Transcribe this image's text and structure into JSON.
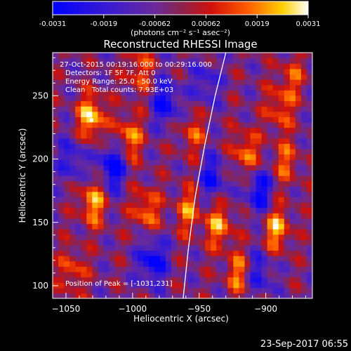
{
  "colorbar": {
    "ticks": [
      "-0.0031",
      "-0.0019",
      "-0.00062",
      "0.00062",
      "0.0019",
      "0.0031"
    ],
    "unit_label": "(photons cm⁻² s⁻¹ asec⁻²)"
  },
  "header": {
    "title": "Reconstructed RHESSI Image"
  },
  "annotations": {
    "line1": "27-Oct-2015 00:19:16.000 to 00:29:16.000",
    "line2": "Detectors: 1F 5F 7F, Att 0",
    "line3": "Energy Range: 25.0 - 50.0 keV",
    "line4": "Clean   Total counts: 7.93E+03",
    "peak": "Position of Peak = [-1031,231]"
  },
  "footer": {
    "timestamp": "23-Sep-2017 06:55"
  },
  "colors": {
    "background": "#000000",
    "text": "#ffffff",
    "limb_line": "#ffffff"
  },
  "chart_data": {
    "type": "heatmap",
    "title": "Reconstructed RHESSI Image",
    "xlabel": "Heliocentric X (arcsec)",
    "ylabel": "Heliocentric Y (arcsec)",
    "xlim": [
      -1060,
      -865
    ],
    "ylim": [
      90,
      284
    ],
    "xticks": [
      -1050,
      -1000,
      -950,
      -900
    ],
    "yticks": [
      100,
      150,
      200,
      250
    ],
    "colormap": "blue-purple-red-orange-yellow-white",
    "color_range": [
      -0.0031,
      0.0031
    ],
    "peak": [
      -1031,
      231
    ],
    "limb_curve": [
      [
        -962,
        90
      ],
      [
        -958,
        130
      ],
      [
        -953,
        170
      ],
      [
        -946,
        210
      ],
      [
        -938,
        250
      ],
      [
        -930,
        284
      ]
    ],
    "bright_sources": [
      {
        "x": -1031,
        "y": 233,
        "value": 0.0031
      },
      {
        "x": -1030,
        "y": 166,
        "value": 0.0026
      },
      {
        "x": -1003,
        "y": 217,
        "value": 0.0024
      },
      {
        "x": -990,
        "y": 160,
        "value": 0.0022
      },
      {
        "x": -995,
        "y": 270,
        "value": 0.0018
      },
      {
        "x": -1045,
        "y": 112,
        "value": 0.0017
      },
      {
        "x": -955,
        "y": 220,
        "value": 0.0016
      },
      {
        "x": -958,
        "y": 160,
        "value": 0.002
      },
      {
        "x": -935,
        "y": 148,
        "value": 0.0024
      },
      {
        "x": -920,
        "y": 110,
        "value": 0.0021
      },
      {
        "x": -915,
        "y": 205,
        "value": 0.0022
      },
      {
        "x": -890,
        "y": 240,
        "value": 0.0018
      },
      {
        "x": -892,
        "y": 145,
        "value": 0.0026
      },
      {
        "x": -885,
        "y": 198,
        "value": 0.0017
      },
      {
        "x": -880,
        "y": 265,
        "value": 0.0015
      }
    ],
    "dark_regions": [
      {
        "x": -1015,
        "y": 195,
        "value": -0.0031
      },
      {
        "x": -975,
        "y": 245,
        "value": -0.0025
      },
      {
        "x": -985,
        "y": 120,
        "value": -0.0028
      },
      {
        "x": -940,
        "y": 185,
        "value": -0.0022
      },
      {
        "x": -905,
        "y": 175,
        "value": -0.0026
      },
      {
        "x": -905,
        "y": 110,
        "value": -0.002
      },
      {
        "x": -1045,
        "y": 200,
        "value": -0.0018
      },
      {
        "x": -945,
        "y": 260,
        "value": -0.0016
      }
    ]
  }
}
